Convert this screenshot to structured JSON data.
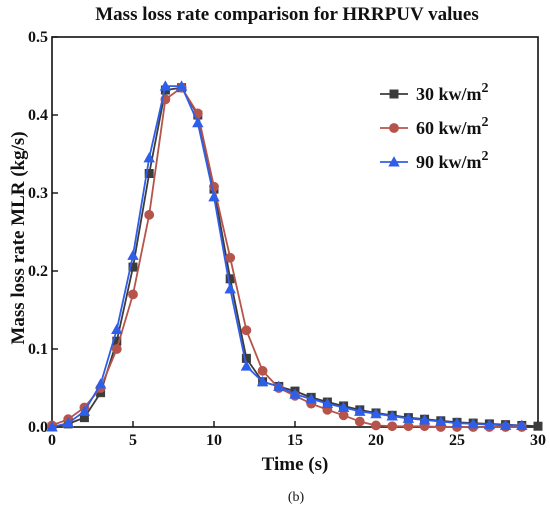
{
  "chart_data": {
    "type": "line",
    "title": "Mass loss rate comparison for HRRPUV values",
    "xlabel": "Time (s)",
    "ylabel": "Mass loss rate MLR (kg/s)",
    "xlim": [
      0,
      30
    ],
    "ylim": [
      0,
      0.5
    ],
    "xticks": [
      0,
      5,
      10,
      15,
      20,
      25,
      30
    ],
    "yticks": [
      0.0,
      0.1,
      0.2,
      0.3,
      0.4,
      0.5
    ],
    "grid": false,
    "legend_position": "top-right",
    "caption": "(b)",
    "series": [
      {
        "name": "30 kw/m2",
        "name_base": "30 kw/m",
        "name_sup": "2",
        "marker": "square",
        "color": "#3c3c3c",
        "x": [
          0,
          1,
          2,
          3,
          4,
          5,
          6,
          7,
          8,
          9,
          10,
          11,
          12,
          13,
          14,
          15,
          16,
          17,
          18,
          19,
          20,
          21,
          22,
          23,
          24,
          25,
          26,
          27,
          28,
          29,
          30
        ],
        "y": [
          0.0,
          0.004,
          0.012,
          0.044,
          0.11,
          0.205,
          0.325,
          0.432,
          0.435,
          0.4,
          0.305,
          0.19,
          0.088,
          0.058,
          0.052,
          0.046,
          0.038,
          0.032,
          0.027,
          0.022,
          0.018,
          0.015,
          0.012,
          0.01,
          0.008,
          0.006,
          0.005,
          0.004,
          0.003,
          0.002,
          0.001
        ]
      },
      {
        "name": "60 kw/m2",
        "name_base": "60 kw/m",
        "name_sup": "2",
        "marker": "circle",
        "color": "#b5544b",
        "x": [
          0,
          1,
          2,
          3,
          4,
          5,
          6,
          7,
          8,
          9,
          10,
          11,
          12,
          13,
          14,
          15,
          16,
          17,
          18,
          19,
          20,
          21,
          22,
          23,
          24,
          25,
          26,
          27,
          28,
          29
        ],
        "y": [
          0.002,
          0.01,
          0.025,
          0.05,
          0.1,
          0.17,
          0.272,
          0.42,
          0.435,
          0.402,
          0.308,
          0.217,
          0.124,
          0.072,
          0.05,
          0.04,
          0.03,
          0.022,
          0.015,
          0.007,
          0.002,
          0.001,
          0.001,
          0.001,
          0.0,
          0.0,
          0.0,
          0.0,
          0.0,
          0.0
        ]
      },
      {
        "name": "90 kw/m2",
        "name_base": "90 kw/m",
        "name_sup": "2",
        "marker": "triangle",
        "color": "#2f5ee8",
        "x": [
          0,
          1,
          2,
          3,
          4,
          5,
          6,
          7,
          8,
          9,
          10,
          11,
          12,
          13,
          14,
          15,
          16,
          17,
          18,
          19,
          20,
          21,
          22,
          23,
          24,
          25,
          26,
          27,
          28,
          29
        ],
        "y": [
          0.0,
          0.005,
          0.02,
          0.055,
          0.125,
          0.22,
          0.345,
          0.437,
          0.437,
          0.39,
          0.295,
          0.177,
          0.078,
          0.058,
          0.052,
          0.042,
          0.036,
          0.03,
          0.025,
          0.02,
          0.017,
          0.014,
          0.011,
          0.009,
          0.007,
          0.005,
          0.004,
          0.003,
          0.002,
          0.002
        ]
      }
    ]
  }
}
